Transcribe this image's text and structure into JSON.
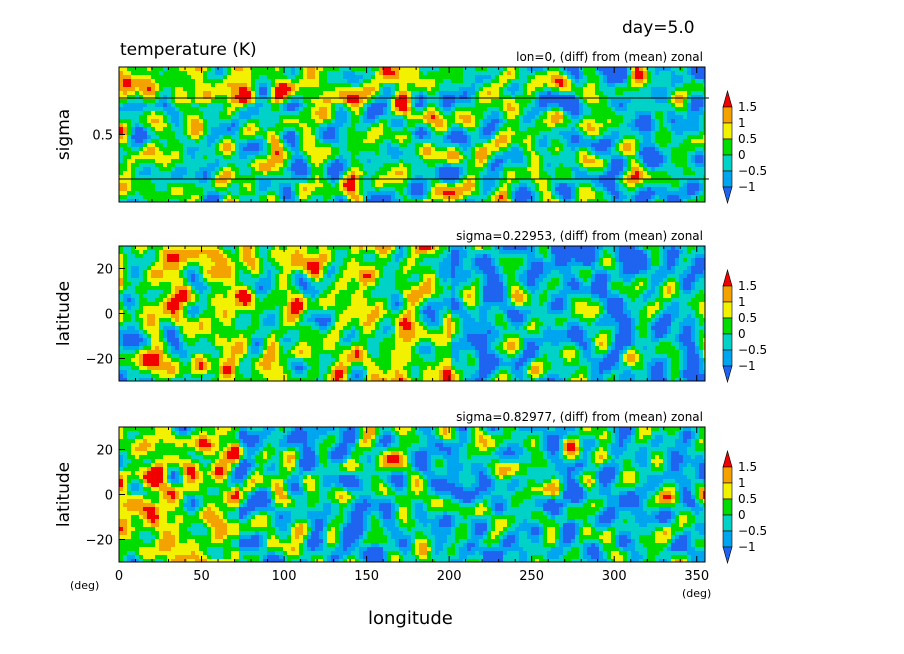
{
  "header": {
    "day": "day=5.0",
    "title": "temperature (K)"
  },
  "x_axis": {
    "label": "longitude",
    "unit_left": "(deg)",
    "unit_right": "(deg)",
    "ticks": [
      "0",
      "50",
      "100",
      "150",
      "200",
      "250",
      "300",
      "350"
    ]
  },
  "colorbar": {
    "labels": [
      "1.5",
      "1",
      "0.5",
      "0",
      "−0.5",
      "−1"
    ]
  },
  "colors": {
    "red": "#f20000",
    "orange": "#f3a200",
    "yellow": "#f2f200",
    "green": "#00dc00",
    "cyan": "#00d2c8",
    "lightblue": "#00a5f0",
    "blue": "#1f64f0"
  },
  "chart_data": [
    {
      "type": "heatmap",
      "panel": 1,
      "subtitle": "lon=0, (diff) from (mean) zonal",
      "ylabel": "sigma",
      "y_ticks": [
        "0.5"
      ],
      "xlim": [
        0,
        355
      ],
      "ylim": [
        0,
        1
      ],
      "levels": [
        -1,
        -0.5,
        0,
        0.5,
        1,
        1.5
      ],
      "reference_lines": [
        0.22953,
        0.82977
      ]
    },
    {
      "type": "heatmap",
      "panel": 2,
      "subtitle": "sigma=0.22953, (diff) from (mean) zonal",
      "ylabel": "latitude",
      "y_ticks": [
        "20",
        "0",
        "−20"
      ],
      "xlim": [
        0,
        355
      ],
      "ylim": [
        -30,
        30
      ],
      "levels": [
        -1,
        -0.5,
        0,
        0.5,
        1,
        1.5
      ]
    },
    {
      "type": "heatmap",
      "panel": 3,
      "subtitle": "sigma=0.82977, (diff) from (mean) zonal",
      "ylabel": "latitude",
      "y_ticks": [
        "20",
        "0",
        "−20"
      ],
      "xlim": [
        0,
        355
      ],
      "ylim": [
        -30,
        30
      ],
      "levels": [
        -1,
        -0.5,
        0,
        0.5,
        1,
        1.5
      ]
    }
  ]
}
